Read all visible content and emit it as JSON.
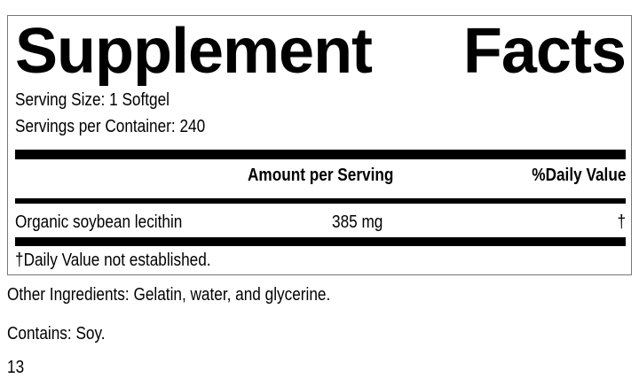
{
  "label": {
    "title_word1": "Supplement",
    "title_word2": "Facts",
    "serving_size": "Serving Size: 1 Softgel",
    "servings_per_container": "Servings per Container: 240",
    "header_amount": "Amount per Serving",
    "header_dv": "%Daily Value",
    "rows": [
      {
        "name": "Organic soybean lecithin",
        "amount": "385 mg",
        "dv": "†"
      }
    ],
    "footnote": "†Daily Value not established."
  },
  "other_ingredients": "Other Ingredients: Gelatin, water, and glycerine.",
  "contains": "Contains: Soy.",
  "code": "13"
}
